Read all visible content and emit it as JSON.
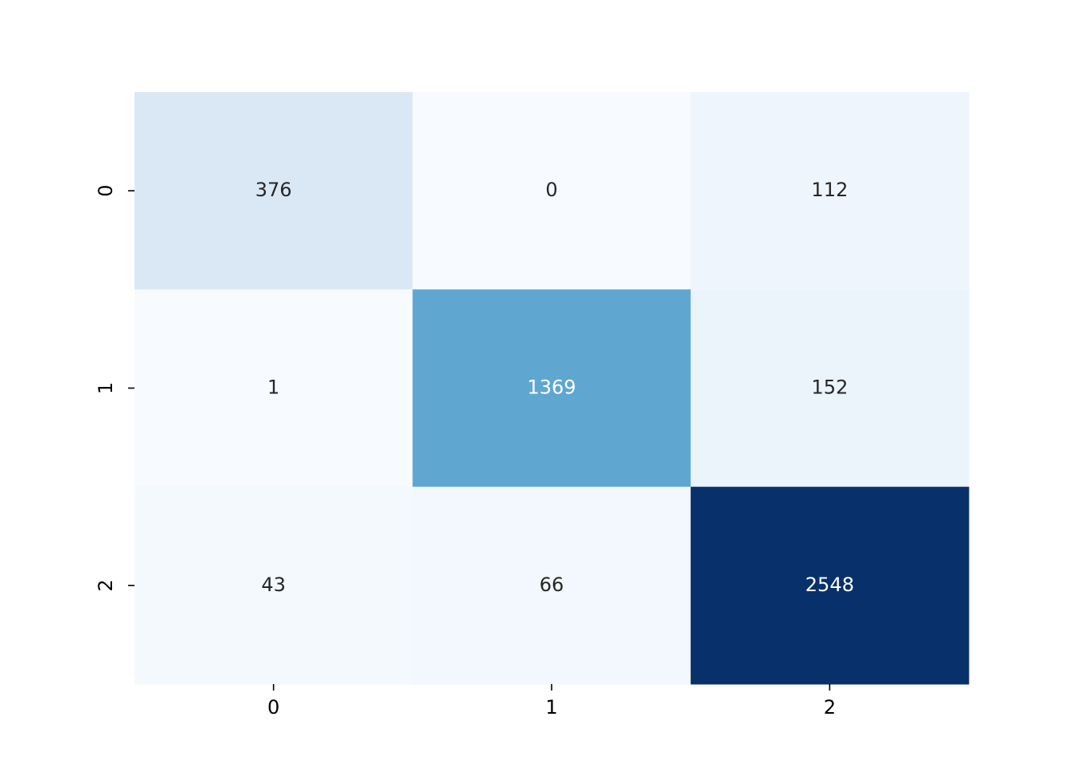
{
  "chart_data": {
    "type": "heatmap",
    "x_categories": [
      "0",
      "1",
      "2"
    ],
    "y_categories": [
      "0",
      "1",
      "2"
    ],
    "values": [
      [
        376,
        0,
        112
      ],
      [
        1,
        1369,
        152
      ],
      [
        43,
        66,
        2548
      ]
    ],
    "colormap": "Blues"
  }
}
